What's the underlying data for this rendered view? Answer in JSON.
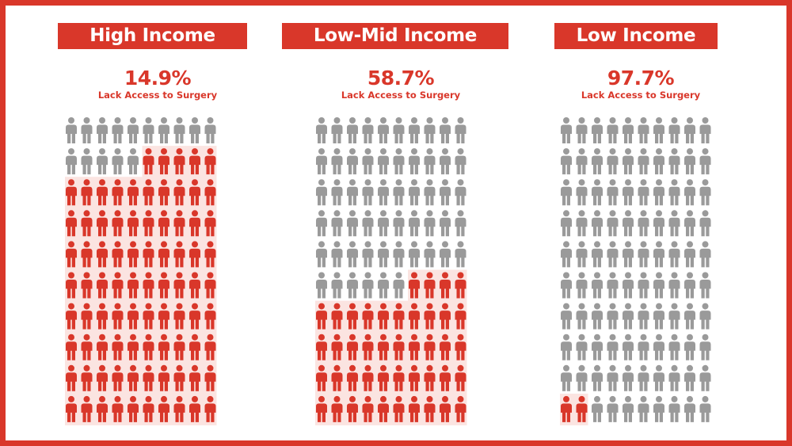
{
  "chart_data": [
    {
      "type": "pictogram",
      "title": "High Income",
      "value_label": "14.9%",
      "subtitle": "Lack Access to Surgery",
      "percent_lacking_access": 14.9,
      "total_icons": 100,
      "highlighted_icons": 85,
      "columns": 10
    },
    {
      "type": "pictogram",
      "title": "Low-Mid Income",
      "value_label": "58.7%",
      "subtitle": "Lack Access to Surgery",
      "percent_lacking_access": 58.7,
      "total_icons": 100,
      "highlighted_icons": 44,
      "columns": 10
    },
    {
      "type": "pictogram",
      "title": "Low Income",
      "value_label": "97.7%",
      "subtitle": "Lack Access to Surgery",
      "percent_lacking_access": 97.7,
      "total_icons": 100,
      "highlighted_icons": 2,
      "columns": 10
    }
  ],
  "colors": {
    "accent": "#d9372a",
    "icon_gray": "#9a9a9a",
    "highlight_bg": "#fbe4e1"
  },
  "icon": "person-icon"
}
